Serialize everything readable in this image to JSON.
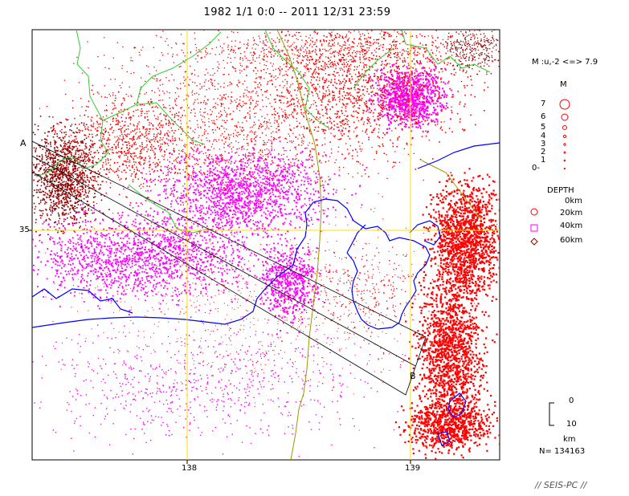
{
  "title": "1982 1/1 0:0 -- 2011 12/31 23:59",
  "map": {
    "lat_label": "35",
    "lon_labels": [
      "138",
      "139"
    ],
    "profile_labels": {
      "start": "A",
      "end": "B"
    }
  },
  "legend": {
    "magnitude_range": "M :u,-2 <=> 7.9",
    "magnitude_header": "M",
    "magnitude_levels": [
      "7",
      "6",
      "5",
      "4",
      "3",
      "2",
      "1",
      "0-"
    ],
    "depth_header": "DEPTH",
    "depths": [
      "0km",
      "20km",
      "40km",
      "60km"
    ],
    "scale_top": "0",
    "scale_bottom": "10",
    "scale_unit": "km",
    "count": "N= 134163"
  },
  "footer": "// SEIS-PC //",
  "colors": {
    "shallow": "#ff0000",
    "mid": "#ff00ff",
    "deep": "#8b0000",
    "coast": "#0000ff",
    "prefecture": "#33cc33",
    "river": "#999900",
    "grid": "#ffdd00"
  }
}
